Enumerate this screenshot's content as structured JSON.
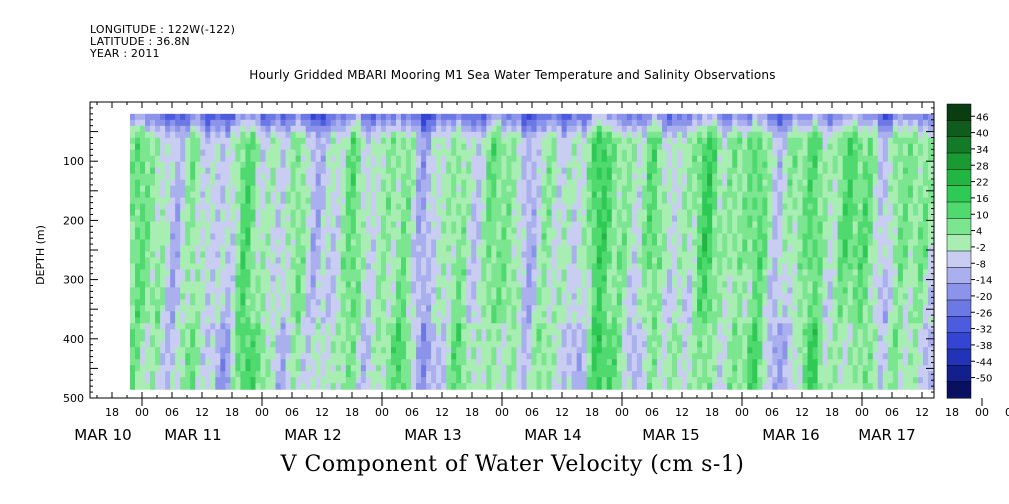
{
  "meta": {
    "longitude": "LONGITUDE : 122W(-122)",
    "latitude": "LATITUDE : 36.8N",
    "year": "YEAR : 2011"
  },
  "chart_data": {
    "type": "heatmap",
    "title": "Hourly Gridded MBARI Mooring M1 Sea Water Temperature and Salinity Observations",
    "caption": "V Component of Water Velocity (cm s-1)",
    "ylabel": "DEPTH (m)",
    "ylim": [
      500,
      0
    ],
    "y_ticks": [
      100,
      200,
      300,
      400,
      500
    ],
    "x_hour_ticks": [
      "18",
      "00",
      "06",
      "12",
      "18",
      "00",
      "06",
      "12",
      "18",
      "00",
      "06",
      "12",
      "18",
      "00",
      "06",
      "12",
      "18",
      "00",
      "06",
      "12",
      "18",
      "00",
      "06",
      "12",
      "18",
      "00",
      "06",
      "12",
      "18",
      "00",
      "06",
      "12"
    ],
    "x_day_labels": [
      "MAR 10",
      "MAR 11",
      "MAR 12",
      "MAR 13",
      "MAR 14",
      "MAR 15",
      "MAR 16",
      "MAR 17"
    ],
    "colorbar": {
      "levels": [
        46,
        40,
        34,
        28,
        22,
        16,
        10,
        4,
        -2,
        -8,
        -14,
        -20,
        -26,
        -32,
        -38,
        -44,
        -50
      ],
      "range": [
        -50,
        46
      ],
      "colors_high_to_low": [
        "#0b3d12",
        "#0f5c1c",
        "#137a27",
        "#1a9a33",
        "#22b542",
        "#2fca55",
        "#4fd96e",
        "#7be68f",
        "#a8eeb3",
        "#c9cdf2",
        "#aab0ee",
        "#8b94ea",
        "#6c78e4",
        "#4d5cde",
        "#3445d4",
        "#2233b8",
        "#141f8e",
        "#0a1060"
      ]
    },
    "depth_range": [
      20,
      485
    ],
    "value_range": [
      -35,
      30
    ]
  }
}
